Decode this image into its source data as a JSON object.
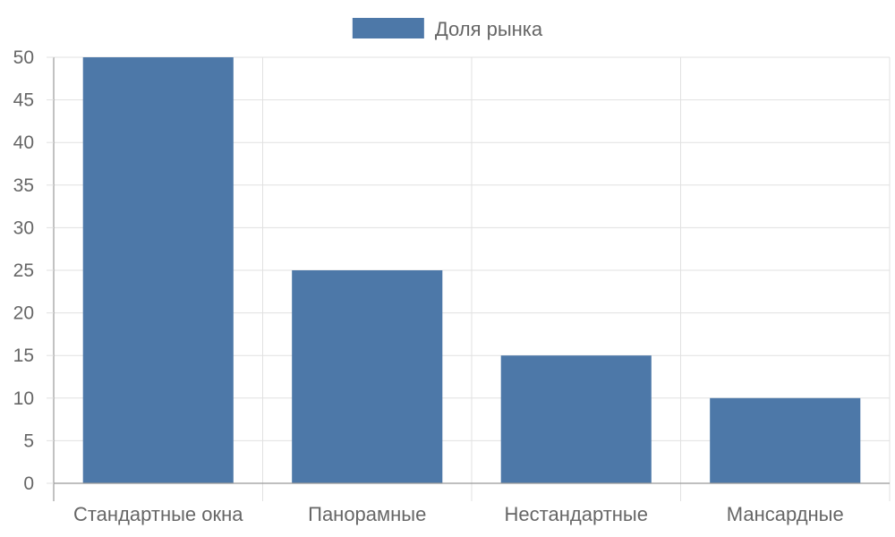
{
  "chart_data": {
    "type": "bar",
    "categories": [
      "Стандартные окна",
      "Панорамные",
      "Нестандартные",
      "Мансардные"
    ],
    "series": [
      {
        "name": "Доля рынка",
        "values": [
          50,
          25,
          15,
          10
        ]
      }
    ],
    "title": "",
    "xlabel": "",
    "ylabel": "",
    "ylim": [
      0,
      50
    ],
    "yticks": [
      0,
      5,
      10,
      15,
      20,
      25,
      30,
      35,
      40,
      45,
      50
    ],
    "grid": true,
    "legend_position": "top-center"
  },
  "colors": {
    "bar": "#4d78a8"
  }
}
